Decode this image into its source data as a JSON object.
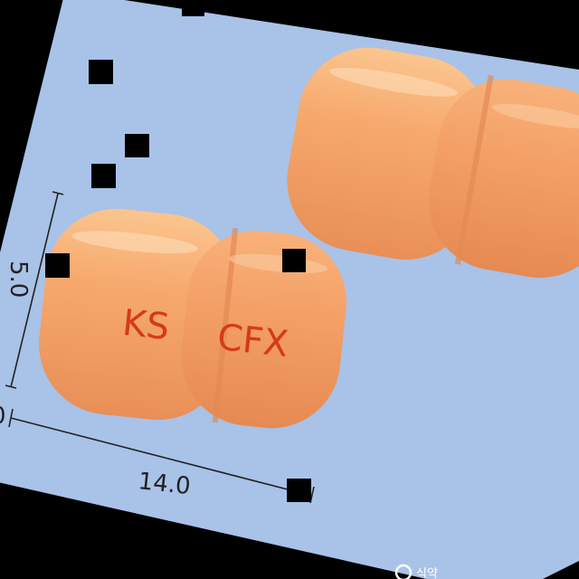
{
  "photo": {
    "dimensions": {
      "width_label": "14.0",
      "height_label": "5.0",
      "partial_label": "0"
    },
    "capsules": [
      {
        "imprint_left": "KS",
        "imprint_right": "CFX"
      },
      {
        "imprint_left": "",
        "imprint_right": ""
      }
    ],
    "watermark": {
      "text": "식약"
    },
    "colors": {
      "background_plate": "#a9c2e8",
      "frame": "#000000",
      "capsule_cap": "#f6a86e",
      "capsule_body": "#f3a06a",
      "imprint": "#d63a14"
    }
  }
}
